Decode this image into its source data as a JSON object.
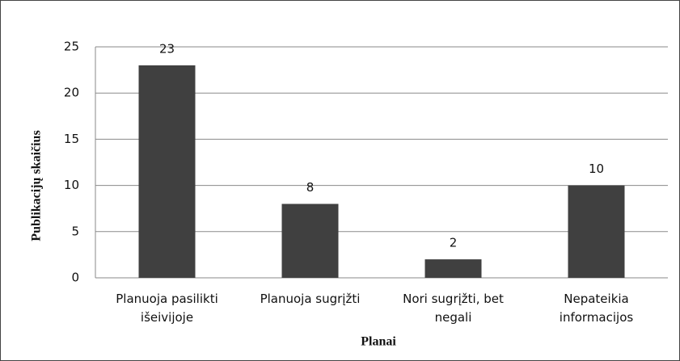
{
  "chart_data": {
    "type": "bar",
    "categories": [
      "Planuoja pasilikti išeivijoje",
      "Planuoja sugrįžti",
      "Nori sugrįžti, bet negali",
      "Nepateikia informacijos"
    ],
    "values": [
      23,
      8,
      2,
      10
    ],
    "color": "#404040",
    "xlabel": "Planai",
    "ylabel": "Publikacijų skaičius",
    "ylim": [
      0,
      25
    ],
    "yticks": [
      0,
      5,
      10,
      15,
      20,
      25
    ],
    "grid": true
  }
}
